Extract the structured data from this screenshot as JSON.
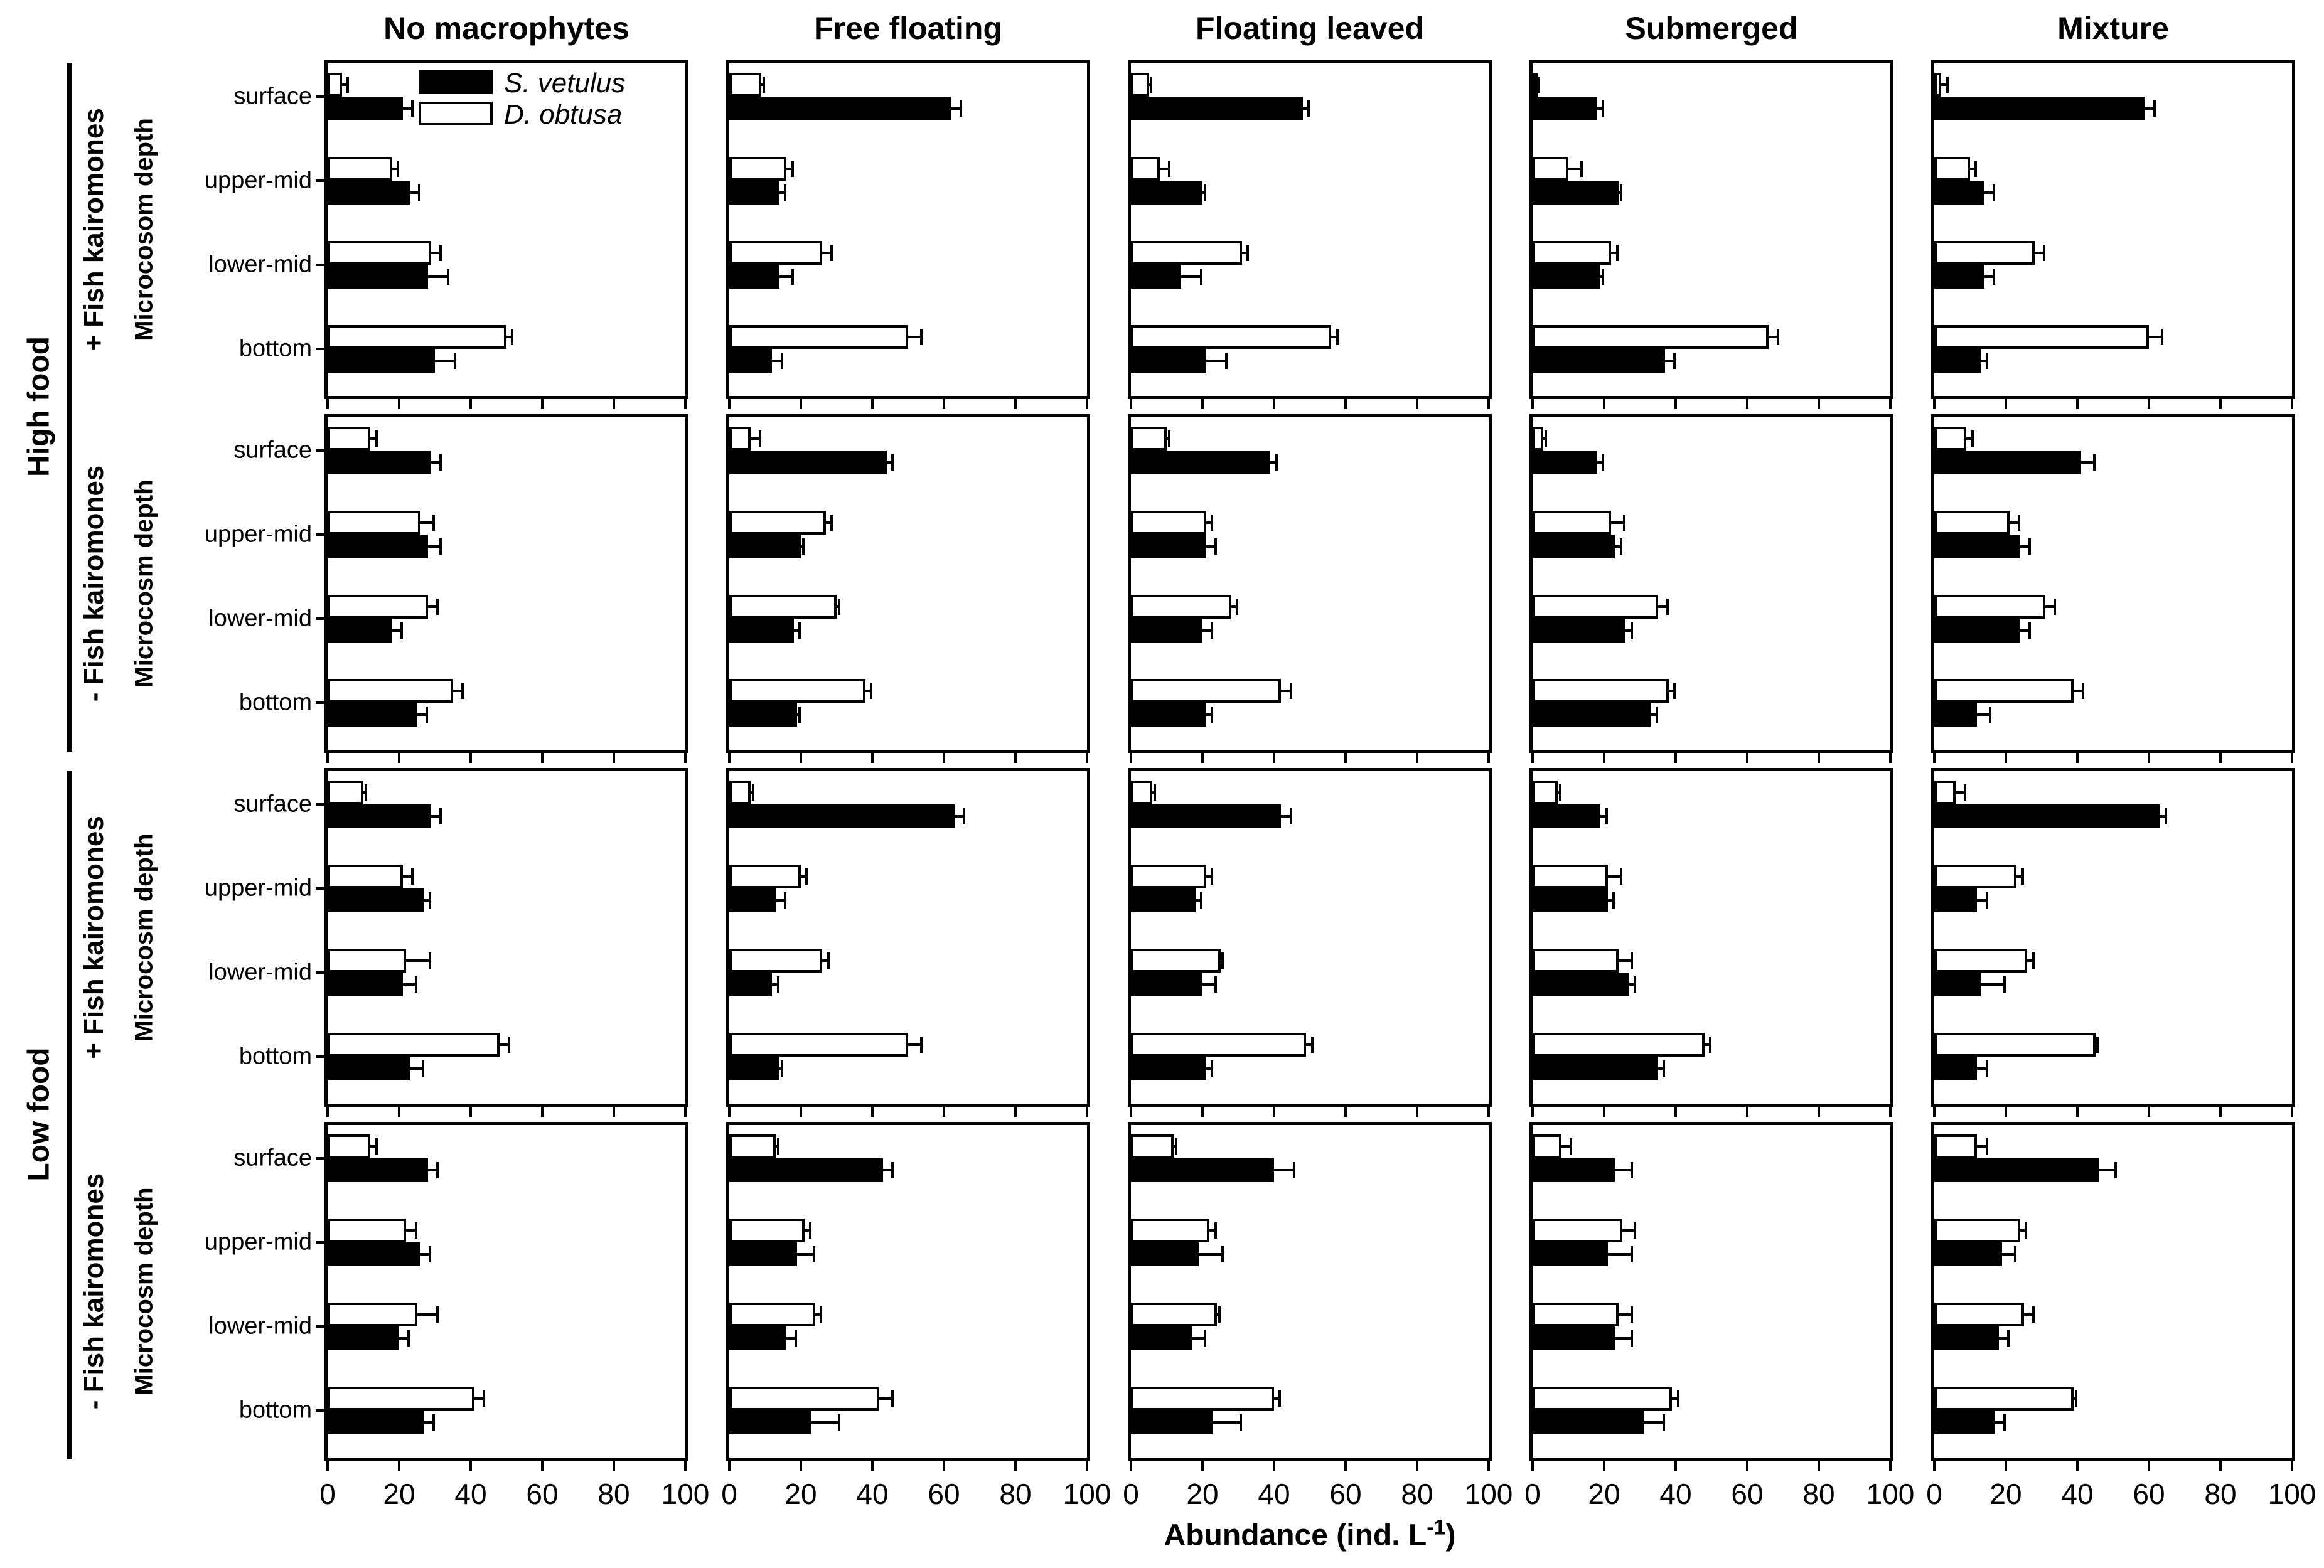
{
  "chart_data": {
    "type": "bar",
    "orientation": "horizontal",
    "xlabel_parts": {
      "prefix": "Abundance (ind. L",
      "sup": "-1",
      "suffix": ")"
    },
    "xlim": [
      0,
      100
    ],
    "xticks": [
      0,
      20,
      40,
      60,
      80,
      100
    ],
    "grid_on": false,
    "legend_position": "top-left-panel",
    "columns": [
      "No macrophytes",
      "Free floating",
      "Floating leaved",
      "Submerged",
      "Mixture"
    ],
    "depths": [
      "surface",
      "upper-mid",
      "lower-mid",
      "bottom"
    ],
    "series_order_within_group": [
      "D. obtusa",
      "S. vetulus"
    ],
    "bar_colors": {
      "S. vetulus": "#000000",
      "D. obtusa": "#ffffff"
    },
    "legend": [
      {
        "label": "S. vetulus",
        "color": "#000000"
      },
      {
        "label": "D. obtusa",
        "color": "#ffffff"
      }
    ],
    "food_groups": [
      {
        "label": "High food",
        "kairomones": [
          "+ Fish kairomones",
          "- Fish kairomones"
        ]
      },
      {
        "label": "Low food",
        "kairomones": [
          "+ Fish kairomones",
          "- Fish kairomones"
        ]
      }
    ],
    "ylabels": [
      "Microcosom depth",
      "Microcosm depth",
      "Microcosm depth",
      "Microcosm depth"
    ],
    "value_format": "[mean, error]",
    "panels": [
      {
        "food": "High food",
        "kairomones": "+ Fish kairomones",
        "column": "No macrophytes",
        "values": {
          "surface": {
            "D. obtusa": [
              4,
              2
            ],
            "S. vetulus": [
              21,
              3
            ]
          },
          "upper-mid": {
            "D. obtusa": [
              18,
              2
            ],
            "S. vetulus": [
              23,
              3
            ]
          },
          "lower-mid": {
            "D. obtusa": [
              29,
              3
            ],
            "S. vetulus": [
              28,
              6
            ]
          },
          "bottom": {
            "D. obtusa": [
              50,
              2
            ],
            "S. vetulus": [
              30,
              6
            ]
          }
        }
      },
      {
        "food": "High food",
        "kairomones": "+ Fish kairomones",
        "column": "Free floating",
        "values": {
          "surface": {
            "D. obtusa": [
              9,
              1
            ],
            "S. vetulus": [
              62,
              3
            ]
          },
          "upper-mid": {
            "D. obtusa": [
              16,
              2
            ],
            "S. vetulus": [
              14,
              2
            ]
          },
          "lower-mid": {
            "D. obtusa": [
              26,
              3
            ],
            "S. vetulus": [
              14,
              4
            ]
          },
          "bottom": {
            "D. obtusa": [
              50,
              4
            ],
            "S. vetulus": [
              12,
              3
            ]
          }
        }
      },
      {
        "food": "High food",
        "kairomones": "+ Fish kairomones",
        "column": "Floating leaved",
        "values": {
          "surface": {
            "D. obtusa": [
              5,
              1
            ],
            "S. vetulus": [
              48,
              2
            ]
          },
          "upper-mid": {
            "D. obtusa": [
              8,
              3
            ],
            "S. vetulus": [
              20,
              1
            ]
          },
          "lower-mid": {
            "D. obtusa": [
              31,
              2
            ],
            "S. vetulus": [
              14,
              6
            ]
          },
          "bottom": {
            "D. obtusa": [
              56,
              2
            ],
            "S. vetulus": [
              21,
              6
            ]
          }
        }
      },
      {
        "food": "High food",
        "kairomones": "+ Fish kairomones",
        "column": "Submerged",
        "values": {
          "surface": {
            "D. obtusa": [
              1,
              1
            ],
            "S. vetulus": [
              18,
              2
            ]
          },
          "upper-mid": {
            "D. obtusa": [
              10,
              4
            ],
            "S. vetulus": [
              24,
              1
            ]
          },
          "lower-mid": {
            "D. obtusa": [
              22,
              2
            ],
            "S. vetulus": [
              19,
              1
            ]
          },
          "bottom": {
            "D. obtusa": [
              66,
              3
            ],
            "S. vetulus": [
              37,
              3
            ]
          }
        }
      },
      {
        "food": "High food",
        "kairomones": "+ Fish kairomones",
        "column": "Mixture",
        "values": {
          "surface": {
            "D. obtusa": [
              2,
              2
            ],
            "S. vetulus": [
              59,
              3
            ]
          },
          "upper-mid": {
            "D. obtusa": [
              10,
              2
            ],
            "S. vetulus": [
              14,
              3
            ]
          },
          "lower-mid": {
            "D. obtusa": [
              28,
              3
            ],
            "S. vetulus": [
              14,
              3
            ]
          },
          "bottom": {
            "D. obtusa": [
              60,
              4
            ],
            "S. vetulus": [
              13,
              2
            ]
          }
        }
      },
      {
        "food": "High food",
        "kairomones": "- Fish kairomones",
        "column": "No macrophytes",
        "values": {
          "surface": {
            "D. obtusa": [
              12,
              2
            ],
            "S. vetulus": [
              29,
              3
            ]
          },
          "upper-mid": {
            "D. obtusa": [
              26,
              4
            ],
            "S. vetulus": [
              28,
              4
            ]
          },
          "lower-mid": {
            "D. obtusa": [
              28,
              3
            ],
            "S. vetulus": [
              18,
              3
            ]
          },
          "bottom": {
            "D. obtusa": [
              35,
              3
            ],
            "S. vetulus": [
              25,
              3
            ]
          }
        }
      },
      {
        "food": "High food",
        "kairomones": "- Fish kairomones",
        "column": "Free floating",
        "values": {
          "surface": {
            "D. obtusa": [
              6,
              3
            ],
            "S. vetulus": [
              44,
              2
            ]
          },
          "upper-mid": {
            "D. obtusa": [
              27,
              2
            ],
            "S. vetulus": [
              20,
              1
            ]
          },
          "lower-mid": {
            "D. obtusa": [
              30,
              1
            ],
            "S. vetulus": [
              18,
              2
            ]
          },
          "bottom": {
            "D. obtusa": [
              38,
              2
            ],
            "S. vetulus": [
              19,
              1
            ]
          }
        }
      },
      {
        "food": "High food",
        "kairomones": "- Fish kairomones",
        "column": "Floating leaved",
        "values": {
          "surface": {
            "D. obtusa": [
              10,
              1
            ],
            "S. vetulus": [
              39,
              2
            ]
          },
          "upper-mid": {
            "D. obtusa": [
              21,
              2
            ],
            "S. vetulus": [
              21,
              3
            ]
          },
          "lower-mid": {
            "D. obtusa": [
              28,
              2
            ],
            "S. vetulus": [
              20,
              3
            ]
          },
          "bottom": {
            "D. obtusa": [
              42,
              3
            ],
            "S. vetulus": [
              21,
              2
            ]
          }
        }
      },
      {
        "food": "High food",
        "kairomones": "- Fish kairomones",
        "column": "Submerged",
        "values": {
          "surface": {
            "D. obtusa": [
              3,
              1
            ],
            "S. vetulus": [
              18,
              2
            ]
          },
          "upper-mid": {
            "D. obtusa": [
              22,
              4
            ],
            "S. vetulus": [
              23,
              2
            ]
          },
          "lower-mid": {
            "D. obtusa": [
              35,
              3
            ],
            "S. vetulus": [
              26,
              2
            ]
          },
          "bottom": {
            "D. obtusa": [
              38,
              2
            ],
            "S. vetulus": [
              33,
              2
            ]
          }
        }
      },
      {
        "food": "High food",
        "kairomones": "- Fish kairomones",
        "column": "Mixture",
        "values": {
          "surface": {
            "D. obtusa": [
              9,
              2
            ],
            "S. vetulus": [
              41,
              4
            ]
          },
          "upper-mid": {
            "D. obtusa": [
              21,
              3
            ],
            "S. vetulus": [
              24,
              3
            ]
          },
          "lower-mid": {
            "D. obtusa": [
              31,
              3
            ],
            "S. vetulus": [
              24,
              3
            ]
          },
          "bottom": {
            "D. obtusa": [
              39,
              3
            ],
            "S. vetulus": [
              12,
              4
            ]
          }
        }
      },
      {
        "food": "Low food",
        "kairomones": "+ Fish kairomones",
        "column": "No macrophytes",
        "values": {
          "surface": {
            "D. obtusa": [
              10,
              1
            ],
            "S. vetulus": [
              29,
              3
            ]
          },
          "upper-mid": {
            "D. obtusa": [
              21,
              3
            ],
            "S. vetulus": [
              27,
              2
            ]
          },
          "lower-mid": {
            "D. obtusa": [
              22,
              7
            ],
            "S. vetulus": [
              21,
              4
            ]
          },
          "bottom": {
            "D. obtusa": [
              48,
              3
            ],
            "S. vetulus": [
              23,
              4
            ]
          }
        }
      },
      {
        "food": "Low food",
        "kairomones": "+ Fish kairomones",
        "column": "Free floating",
        "values": {
          "surface": {
            "D. obtusa": [
              6,
              1
            ],
            "S. vetulus": [
              63,
              3
            ]
          },
          "upper-mid": {
            "D. obtusa": [
              20,
              2
            ],
            "S. vetulus": [
              13,
              3
            ]
          },
          "lower-mid": {
            "D. obtusa": [
              26,
              2
            ],
            "S. vetulus": [
              12,
              2
            ]
          },
          "bottom": {
            "D. obtusa": [
              50,
              4
            ],
            "S. vetulus": [
              14,
              1
            ]
          }
        }
      },
      {
        "food": "Low food",
        "kairomones": "+ Fish kairomones",
        "column": "Floating leaved",
        "values": {
          "surface": {
            "D. obtusa": [
              6,
              1
            ],
            "S. vetulus": [
              42,
              3
            ]
          },
          "upper-mid": {
            "D. obtusa": [
              21,
              2
            ],
            "S. vetulus": [
              18,
              2
            ]
          },
          "lower-mid": {
            "D. obtusa": [
              25,
              1
            ],
            "S. vetulus": [
              20,
              4
            ]
          },
          "bottom": {
            "D. obtusa": [
              49,
              2
            ],
            "S. vetulus": [
              21,
              2
            ]
          }
        }
      },
      {
        "food": "Low food",
        "kairomones": "+ Fish kairomones",
        "column": "Submerged",
        "values": {
          "surface": {
            "D. obtusa": [
              7,
              1
            ],
            "S. vetulus": [
              19,
              2
            ]
          },
          "upper-mid": {
            "D. obtusa": [
              21,
              4
            ],
            "S. vetulus": [
              21,
              2
            ]
          },
          "lower-mid": {
            "D. obtusa": [
              24,
              4
            ],
            "S. vetulus": [
              27,
              2
            ]
          },
          "bottom": {
            "D. obtusa": [
              48,
              2
            ],
            "S. vetulus": [
              35,
              2
            ]
          }
        }
      },
      {
        "food": "Low food",
        "kairomones": "+ Fish kairomones",
        "column": "Mixture",
        "values": {
          "surface": {
            "D. obtusa": [
              6,
              3
            ],
            "S. vetulus": [
              63,
              2
            ]
          },
          "upper-mid": {
            "D. obtusa": [
              23,
              2
            ],
            "S. vetulus": [
              12,
              3
            ]
          },
          "lower-mid": {
            "D. obtusa": [
              26,
              2
            ],
            "S. vetulus": [
              13,
              7
            ]
          },
          "bottom": {
            "D. obtusa": [
              45,
              1
            ],
            "S. vetulus": [
              12,
              3
            ]
          }
        }
      },
      {
        "food": "Low food",
        "kairomones": "- Fish kairomones",
        "column": "No macrophytes",
        "values": {
          "surface": {
            "D. obtusa": [
              12,
              2
            ],
            "S. vetulus": [
              28,
              3
            ]
          },
          "upper-mid": {
            "D. obtusa": [
              22,
              3
            ],
            "S. vetulus": [
              26,
              3
            ]
          },
          "lower-mid": {
            "D. obtusa": [
              25,
              6
            ],
            "S. vetulus": [
              20,
              3
            ]
          },
          "bottom": {
            "D. obtusa": [
              41,
              3
            ],
            "S. vetulus": [
              27,
              3
            ]
          }
        }
      },
      {
        "food": "Low food",
        "kairomones": "- Fish kairomones",
        "column": "Free floating",
        "values": {
          "surface": {
            "D. obtusa": [
              13,
              1
            ],
            "S. vetulus": [
              43,
              3
            ]
          },
          "upper-mid": {
            "D. obtusa": [
              21,
              2
            ],
            "S. vetulus": [
              19,
              5
            ]
          },
          "lower-mid": {
            "D. obtusa": [
              24,
              2
            ],
            "S. vetulus": [
              16,
              3
            ]
          },
          "bottom": {
            "D. obtusa": [
              42,
              4
            ],
            "S. vetulus": [
              23,
              8
            ]
          }
        }
      },
      {
        "food": "Low food",
        "kairomones": "- Fish kairomones",
        "column": "Floating leaved",
        "values": {
          "surface": {
            "D. obtusa": [
              12,
              1
            ],
            "S. vetulus": [
              40,
              6
            ]
          },
          "upper-mid": {
            "D. obtusa": [
              22,
              2
            ],
            "S. vetulus": [
              19,
              7
            ]
          },
          "lower-mid": {
            "D. obtusa": [
              24,
              1
            ],
            "S. vetulus": [
              17,
              4
            ]
          },
          "bottom": {
            "D. obtusa": [
              40,
              2
            ],
            "S. vetulus": [
              23,
              8
            ]
          }
        }
      },
      {
        "food": "Low food",
        "kairomones": "- Fish kairomones",
        "column": "Submerged",
        "values": {
          "surface": {
            "D. obtusa": [
              8,
              3
            ],
            "S. vetulus": [
              23,
              5
            ]
          },
          "upper-mid": {
            "D. obtusa": [
              25,
              4
            ],
            "S. vetulus": [
              21,
              7
            ]
          },
          "lower-mid": {
            "D. obtusa": [
              24,
              4
            ],
            "S. vetulus": [
              23,
              5
            ]
          },
          "bottom": {
            "D. obtusa": [
              39,
              2
            ],
            "S. vetulus": [
              31,
              6
            ]
          }
        }
      },
      {
        "food": "Low food",
        "kairomones": "- Fish kairomones",
        "column": "Mixture",
        "values": {
          "surface": {
            "D. obtusa": [
              12,
              3
            ],
            "S. vetulus": [
              46,
              5
            ]
          },
          "upper-mid": {
            "D. obtusa": [
              24,
              2
            ],
            "S. vetulus": [
              19,
              4
            ]
          },
          "lower-mid": {
            "D. obtusa": [
              25,
              3
            ],
            "S. vetulus": [
              18,
              3
            ]
          },
          "bottom": {
            "D. obtusa": [
              39,
              1
            ],
            "S. vetulus": [
              17,
              3
            ]
          }
        }
      }
    ]
  }
}
